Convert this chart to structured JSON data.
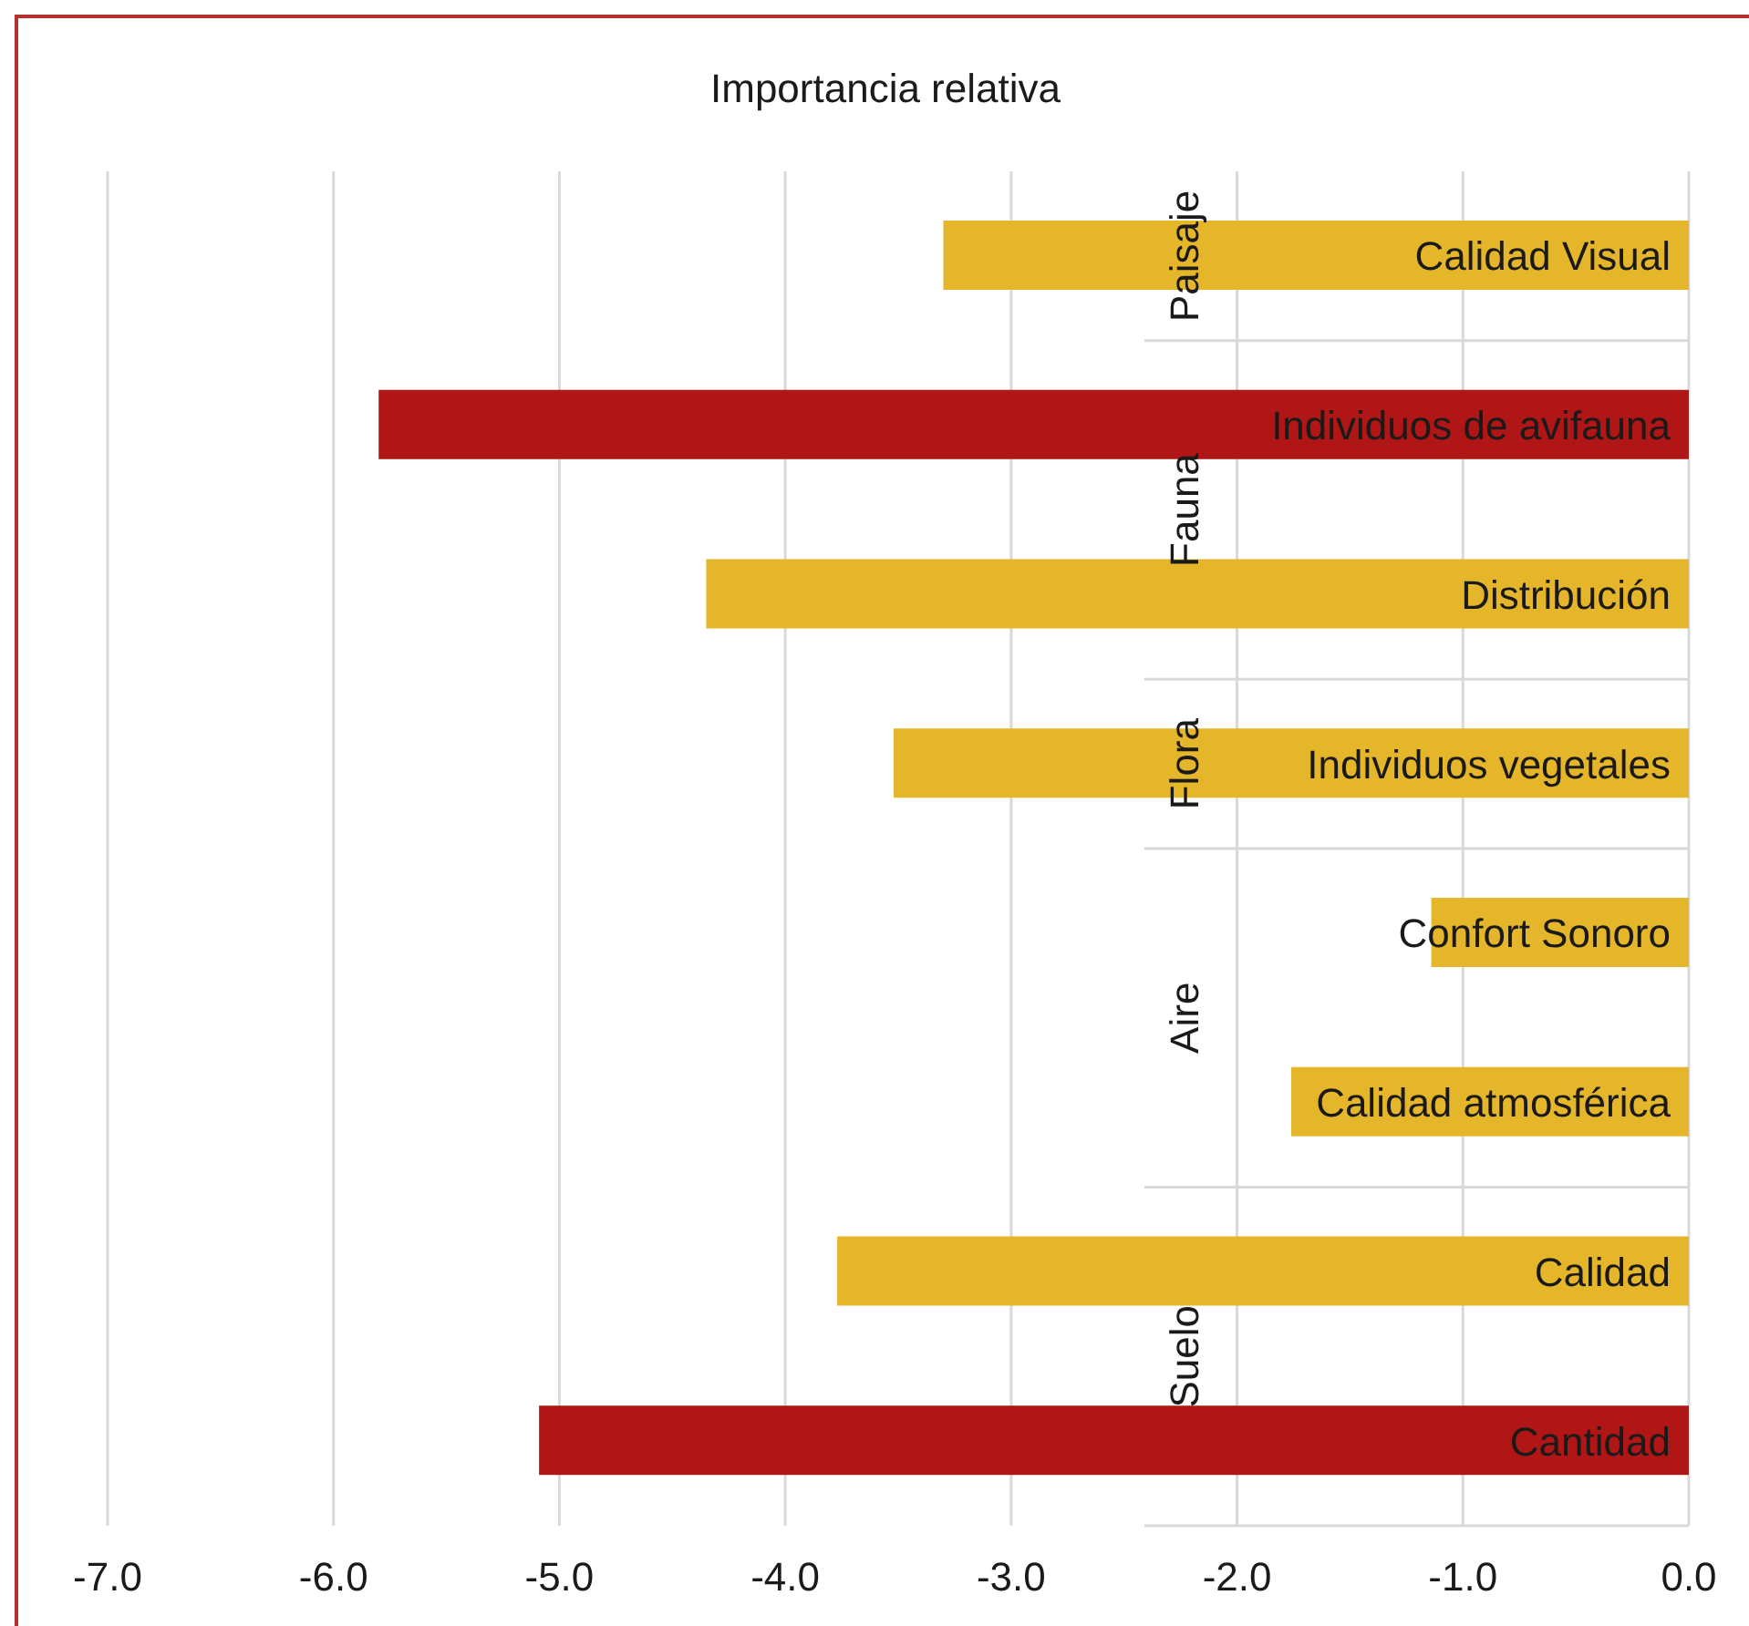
{
  "chart_data": {
    "type": "bar",
    "orientation": "horizontal",
    "title": "Importancia relativa",
    "categories": [
      "Calidad Visual",
      "Individuos de avifauna",
      "Distribución",
      "Individuos vegetales",
      "Confort Sonoro",
      "Calidad atmosférica",
      "Calidad",
      "Cantidad"
    ],
    "values": [
      -3.3,
      -5.8,
      -4.35,
      -3.52,
      -1.14,
      -1.76,
      -3.77,
      -5.09
    ],
    "colors": [
      "#e6b62a",
      "#b01615",
      "#e6b62a",
      "#e6b62a",
      "#e6b62a",
      "#e6b62a",
      "#e6b62a",
      "#b01615"
    ],
    "xlim": [
      -7,
      0
    ],
    "xticks": [
      {
        "value": -7,
        "label": "-7.0"
      },
      {
        "value": -6,
        "label": "-6.0"
      },
      {
        "value": -5,
        "label": "-5.0"
      },
      {
        "value": -4,
        "label": "-4.0"
      },
      {
        "value": -3,
        "label": "-3.0"
      },
      {
        "value": -2,
        "label": "-2.0"
      },
      {
        "value": -1,
        "label": "-1.0"
      },
      {
        "value": 0,
        "label": "0.0"
      }
    ],
    "grid": "x",
    "annotations": [
      "Paisaje",
      "Fauna",
      "Flora",
      "Aire",
      "Suelo"
    ]
  }
}
